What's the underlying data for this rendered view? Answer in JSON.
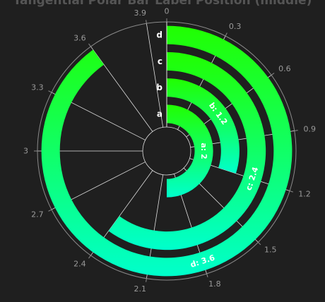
{
  "chart_data": {
    "type": "bar",
    "polar": true,
    "title": "Tangential Polar Bar Label Position (middle)",
    "categories": [
      "a",
      "b",
      "c",
      "d"
    ],
    "values": [
      2,
      1.2,
      2.4,
      3.6
    ],
    "bar_labels": [
      "a: 2",
      "b: 1.2",
      "c: 2.4",
      "d: 3.6"
    ],
    "angle_axis": {
      "min": 0,
      "max": 4,
      "ticks": [
        "0",
        "0.3",
        "0.6",
        "0.9",
        "1.2",
        "1.5",
        "1.8",
        "2.1",
        "2.4",
        "2.7",
        "3",
        "3.3",
        "3.6",
        "3.9"
      ]
    },
    "gradient": {
      "start": "#21ff00",
      "end": "#00ffcc"
    },
    "colors": {
      "background": "#1f1f1f",
      "axis": "#8a8a8a",
      "grid": "#e0e0e0",
      "title": "#555555"
    }
  }
}
